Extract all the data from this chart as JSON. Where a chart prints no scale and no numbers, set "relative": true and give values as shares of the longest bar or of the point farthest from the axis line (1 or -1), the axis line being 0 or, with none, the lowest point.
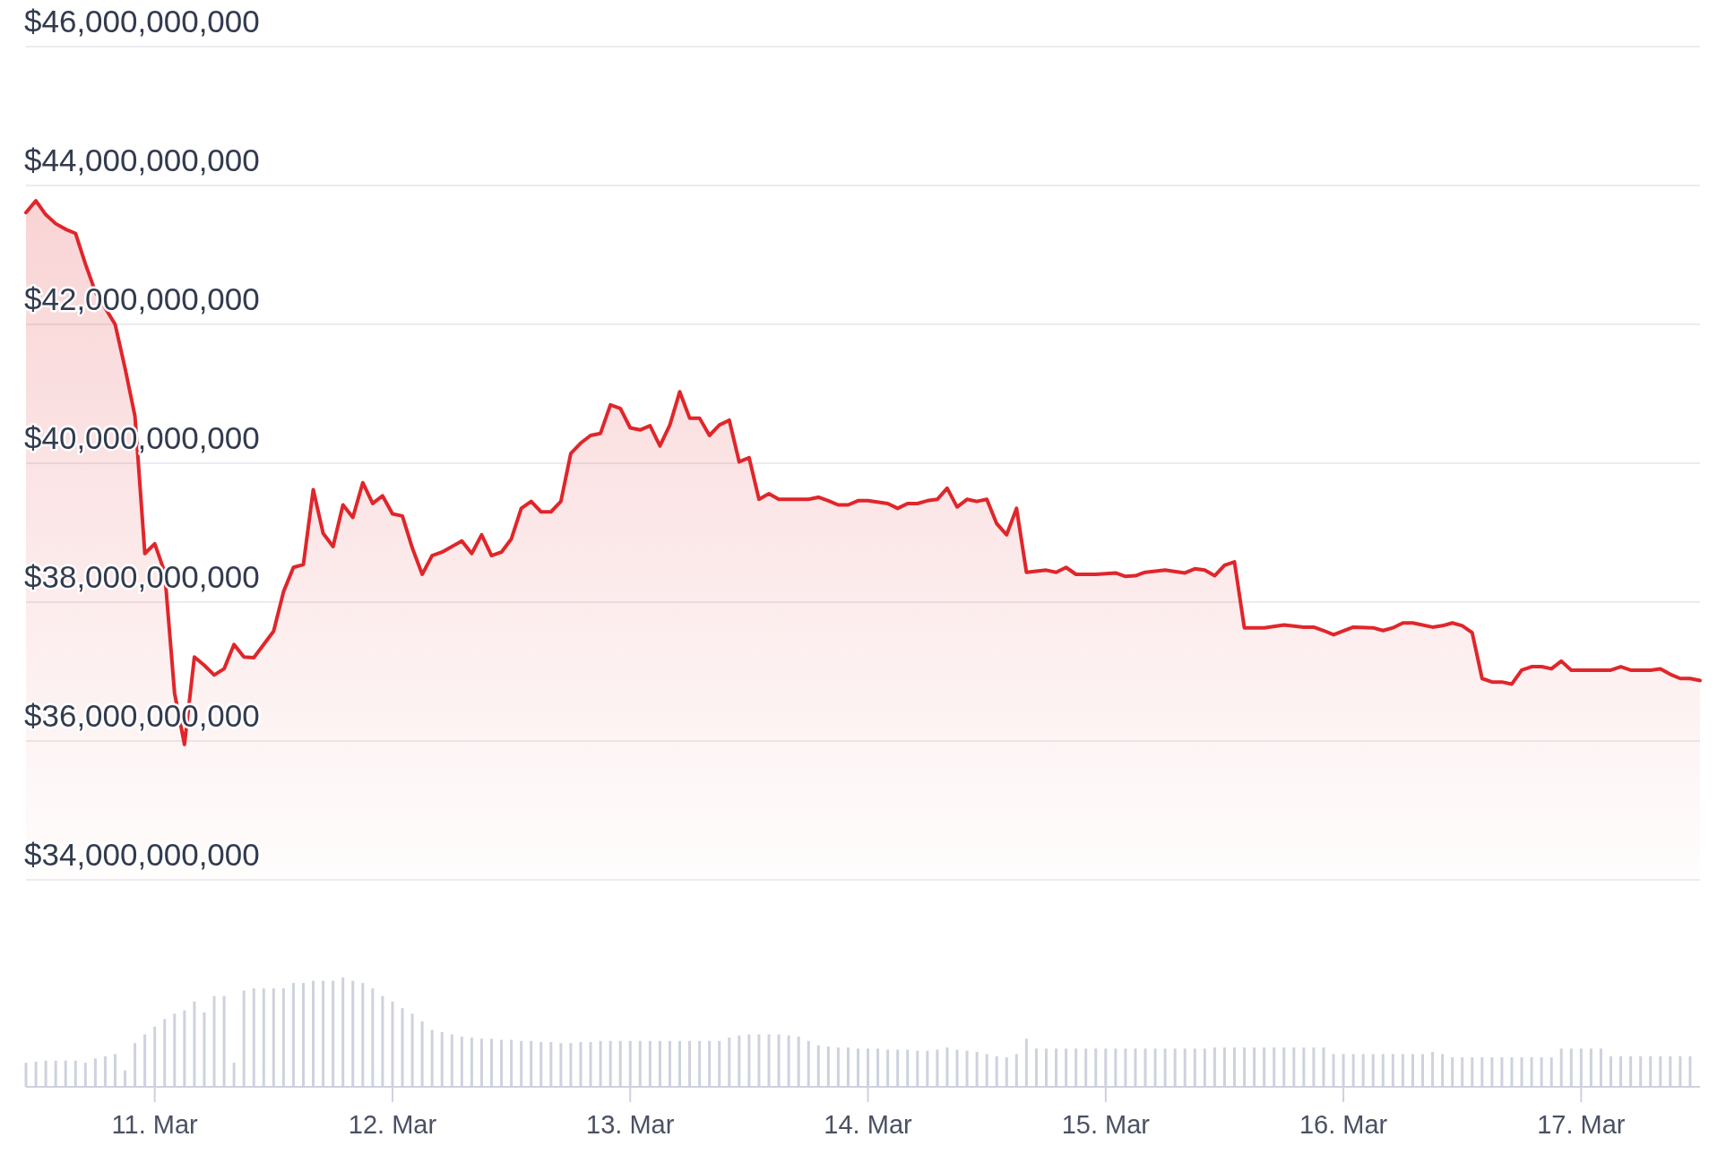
{
  "chart_data": [
    {
      "type": "area",
      "color": "#e0262b",
      "grid": "y",
      "tick_labels": "y",
      "xlim": [
        "--03-10T11:00",
        "--03-17T12:00"
      ],
      "ylim": [
        34000000000,
        46000000000
      ],
      "yticks": [
        {
          "value": 34000000000,
          "label": "$34,000,000,000"
        },
        {
          "value": 36000000000,
          "label": "$36,000,000,000"
        },
        {
          "value": 38000000000,
          "label": "$38,000,000,000"
        },
        {
          "value": 40000000000,
          "label": "$40,000,000,000"
        },
        {
          "value": 42000000000,
          "label": "$42,000,000,000"
        },
        {
          "value": 44000000000,
          "label": "$44,000,000,000"
        },
        {
          "value": 46000000000,
          "label": "$46,000,000,000"
        }
      ],
      "x": [
        "--03-10T11:00",
        "--03-10T12:00",
        "--03-10T13:00",
        "--03-10T14:00",
        "--03-10T15:00",
        "--03-10T16:00",
        "--03-10T17:00",
        "--03-10T18:00",
        "--03-10T20:00",
        "--03-10T21:00",
        "--03-10T22:00",
        "--03-10T23:00",
        "--03-11T00:00",
        "--03-11T01:00",
        "--03-11T02:00",
        "--03-11T03:00",
        "--03-11T04:00",
        "--03-11T05:00",
        "--03-11T06:00",
        "--03-11T07:00",
        "--03-11T08:00",
        "--03-11T09:00",
        "--03-11T10:00",
        "--03-11T12:00",
        "--03-11T13:00",
        "--03-11T14:00",
        "--03-11T15:00",
        "--03-11T16:00",
        "--03-11T17:00",
        "--03-11T18:00",
        "--03-11T19:00",
        "--03-11T20:00",
        "--03-11T21:00",
        "--03-11T22:00",
        "--03-11T23:00",
        "--03-12T00:00",
        "--03-12T01:00",
        "--03-12T02:00",
        "--03-12T03:00",
        "--03-12T04:00",
        "--03-12T05:00",
        "--03-12T07:00",
        "--03-12T08:00",
        "--03-12T09:00",
        "--03-12T10:00",
        "--03-12T11:00",
        "--03-12T12:00",
        "--03-12T13:00",
        "--03-12T14:00",
        "--03-12T15:00",
        "--03-12T16:00",
        "--03-12T17:00",
        "--03-12T18:00",
        "--03-12T19:00",
        "--03-12T20:00",
        "--03-12T21:00",
        "--03-12T22:00",
        "--03-12T23:00",
        "--03-13T00:00",
        "--03-13T01:00",
        "--03-13T02:00",
        "--03-13T03:00",
        "--03-13T04:00",
        "--03-13T05:00",
        "--03-13T06:00",
        "--03-13T07:00",
        "--03-13T08:00",
        "--03-13T09:00",
        "--03-13T10:00",
        "--03-13T11:00",
        "--03-13T12:00",
        "--03-13T13:00",
        "--03-13T14:00",
        "--03-13T15:00",
        "--03-13T18:00",
        "--03-13T19:00",
        "--03-13T20:00",
        "--03-13T21:00",
        "--03-13T22:00",
        "--03-13T23:00",
        "--03-14T00:00",
        "--03-14T02:00",
        "--03-14T03:00",
        "--03-14T04:00",
        "--03-14T05:00",
        "--03-14T06:00",
        "--03-14T07:00",
        "--03-14T08:00",
        "--03-14T09:00",
        "--03-14T10:00",
        "--03-14T11:00",
        "--03-14T12:00",
        "--03-14T13:00",
        "--03-14T14:00",
        "--03-14T15:00",
        "--03-14T16:00",
        "--03-14T18:00",
        "--03-14T19:00",
        "--03-14T20:00",
        "--03-14T21:00",
        "--03-14T23:00",
        "--03-15T01:00",
        "--03-15T02:00",
        "--03-15T03:00",
        "--03-15T04:00",
        "--03-15T06:00",
        "--03-15T08:00",
        "--03-15T09:00",
        "--03-15T10:00",
        "--03-15T11:00",
        "--03-15T12:00",
        "--03-15T13:00",
        "--03-15T14:00",
        "--03-15T16:00",
        "--03-15T18:00",
        "--03-15T20:00",
        "--03-15T21:00",
        "--03-15T22:00",
        "--03-15T23:00",
        "--03-16T01:00",
        "--03-16T03:00",
        "--03-16T04:00",
        "--03-16T05:00",
        "--03-16T06:00",
        "--03-16T07:00",
        "--03-16T09:00",
        "--03-16T10:00",
        "--03-16T11:00",
        "--03-16T12:00",
        "--03-16T13:00",
        "--03-16T14:00",
        "--03-16T15:00",
        "--03-16T16:00",
        "--03-16T17:00",
        "--03-16T18:00",
        "--03-16T19:00",
        "--03-16T20:00",
        "--03-16T21:00",
        "--03-16T22:00",
        "--03-16T23:00",
        "--03-17T00:00",
        "--03-17T03:00",
        "--03-17T04:00",
        "--03-17T05:00",
        "--03-17T07:00",
        "--03-17T08:00",
        "--03-17T09:00",
        "--03-17T10:00",
        "--03-17T11:00",
        "--03-17T12:00"
      ],
      "values": [
        43610000000,
        43780000000,
        43580000000,
        43450000000,
        43370000000,
        43310000000,
        42870000000,
        42470000000,
        42000000000,
        41370000000,
        40680000000,
        38700000000,
        38840000000,
        38430000000,
        36690000000,
        35950000000,
        37210000000,
        37090000000,
        36950000000,
        37040000000,
        37390000000,
        37210000000,
        37200000000,
        37580000000,
        38150000000,
        38500000000,
        38540000000,
        39620000000,
        38990000000,
        38800000000,
        39400000000,
        39220000000,
        39720000000,
        39420000000,
        39530000000,
        39270000000,
        39240000000,
        38780000000,
        38400000000,
        38670000000,
        38720000000,
        38880000000,
        38700000000,
        38970000000,
        38670000000,
        38720000000,
        38910000000,
        39350000000,
        39450000000,
        39300000000,
        39300000000,
        39450000000,
        40140000000,
        40290000000,
        40400000000,
        40430000000,
        40840000000,
        40790000000,
        40510000000,
        40480000000,
        40540000000,
        40250000000,
        40550000000,
        41030000000,
        40650000000,
        40650000000,
        40400000000,
        40550000000,
        40620000000,
        40020000000,
        40080000000,
        39480000000,
        39560000000,
        39480000000,
        39480000000,
        39510000000,
        39460000000,
        39400000000,
        39400000000,
        39460000000,
        39460000000,
        39420000000,
        39350000000,
        39420000000,
        39420000000,
        39460000000,
        39480000000,
        39640000000,
        39370000000,
        39480000000,
        39450000000,
        39480000000,
        39130000000,
        38970000000,
        39350000000,
        38430000000,
        38460000000,
        38430000000,
        38500000000,
        38400000000,
        38400000000,
        38420000000,
        38370000000,
        38380000000,
        38430000000,
        38460000000,
        38420000000,
        38480000000,
        38460000000,
        38380000000,
        38530000000,
        38580000000,
        37630000000,
        37630000000,
        37670000000,
        37640000000,
        37640000000,
        37590000000,
        37530000000,
        37640000000,
        37630000000,
        37590000000,
        37630000000,
        37700000000,
        37700000000,
        37640000000,
        37660000000,
        37700000000,
        37660000000,
        37560000000,
        36900000000,
        36850000000,
        36850000000,
        36820000000,
        37020000000,
        37070000000,
        37070000000,
        37040000000,
        37150000000,
        37020000000,
        37020000000,
        37020000000,
        37070000000,
        37020000000,
        37020000000,
        37040000000,
        36960000000,
        36900000000,
        36900000000,
        36870000000
      ]
    },
    {
      "type": "bar",
      "relative": true,
      "color": "#cdd2dd",
      "tick_labels": "x",
      "xlim": [
        "--03-10T11:00",
        "--03-17T12:00"
      ],
      "xticks": [
        {
          "value": "--03-11T00:00",
          "label": "11. Mar"
        },
        {
          "value": "--03-12T00:00",
          "label": "12. Mar"
        },
        {
          "value": "--03-13T00:00",
          "label": "13. Mar"
        },
        {
          "value": "--03-14T00:00",
          "label": "14. Mar"
        },
        {
          "value": "--03-15T00:00",
          "label": "15. Mar"
        },
        {
          "value": "--03-16T00:00",
          "label": "16. Mar"
        },
        {
          "value": "--03-17T00:00",
          "label": "17. Mar"
        }
      ],
      "x": [
        "--03-10T11:00",
        "--03-10T12:00",
        "--03-10T13:00",
        "--03-10T14:00",
        "--03-10T15:00",
        "--03-10T16:00",
        "--03-10T17:00",
        "--03-10T18:00",
        "--03-10T19:00",
        "--03-10T20:00",
        "--03-10T21:00",
        "--03-10T22:00",
        "--03-10T23:00",
        "--03-11T00:00",
        "--03-11T01:00",
        "--03-11T02:00",
        "--03-11T03:00",
        "--03-11T04:00",
        "--03-11T05:00",
        "--03-11T06:00",
        "--03-11T07:00",
        "--03-11T08:00",
        "--03-11T09:00",
        "--03-11T10:00",
        "--03-11T11:00",
        "--03-11T12:00",
        "--03-11T13:00",
        "--03-11T14:00",
        "--03-11T15:00",
        "--03-11T16:00",
        "--03-11T17:00",
        "--03-11T18:00",
        "--03-11T19:00",
        "--03-11T20:00",
        "--03-11T21:00",
        "--03-11T22:00",
        "--03-11T23:00",
        "--03-12T00:00",
        "--03-12T01:00",
        "--03-12T02:00",
        "--03-12T03:00",
        "--03-12T04:00",
        "--03-12T05:00",
        "--03-12T06:00",
        "--03-12T07:00",
        "--03-12T08:00",
        "--03-12T09:00",
        "--03-12T10:00",
        "--03-12T11:00",
        "--03-12T12:00",
        "--03-12T13:00",
        "--03-12T14:00",
        "--03-12T15:00",
        "--03-12T16:00",
        "--03-12T17:00",
        "--03-12T18:00",
        "--03-12T19:00",
        "--03-12T20:00",
        "--03-12T21:00",
        "--03-12T22:00",
        "--03-12T23:00",
        "--03-13T00:00",
        "--03-13T01:00",
        "--03-13T02:00",
        "--03-13T03:00",
        "--03-13T04:00",
        "--03-13T05:00",
        "--03-13T06:00",
        "--03-13T07:00",
        "--03-13T08:00",
        "--03-13T09:00",
        "--03-13T10:00",
        "--03-13T11:00",
        "--03-13T12:00",
        "--03-13T13:00",
        "--03-13T14:00",
        "--03-13T15:00",
        "--03-13T16:00",
        "--03-13T17:00",
        "--03-13T18:00",
        "--03-13T19:00",
        "--03-13T20:00",
        "--03-13T21:00",
        "--03-13T22:00",
        "--03-13T23:00",
        "--03-14T00:00",
        "--03-14T01:00",
        "--03-14T02:00",
        "--03-14T03:00",
        "--03-14T04:00",
        "--03-14T05:00",
        "--03-14T06:00",
        "--03-14T07:00",
        "--03-14T08:00",
        "--03-14T09:00",
        "--03-14T10:00",
        "--03-14T11:00",
        "--03-14T12:00",
        "--03-14T13:00",
        "--03-14T14:00",
        "--03-14T15:00",
        "--03-14T16:00",
        "--03-14T17:00",
        "--03-14T18:00",
        "--03-14T19:00",
        "--03-14T20:00",
        "--03-14T21:00",
        "--03-14T22:00",
        "--03-14T23:00",
        "--03-15T00:00",
        "--03-15T01:00",
        "--03-15T02:00",
        "--03-15T03:00",
        "--03-15T04:00",
        "--03-15T05:00",
        "--03-15T06:00",
        "--03-15T07:00",
        "--03-15T08:00",
        "--03-15T09:00",
        "--03-15T10:00",
        "--03-15T11:00",
        "--03-15T12:00",
        "--03-15T13:00",
        "--03-15T14:00",
        "--03-15T15:00",
        "--03-15T16:00",
        "--03-15T17:00",
        "--03-15T18:00",
        "--03-15T19:00",
        "--03-15T20:00",
        "--03-15T21:00",
        "--03-15T22:00",
        "--03-15T23:00",
        "--03-16T00:00",
        "--03-16T01:00",
        "--03-16T02:00",
        "--03-16T03:00",
        "--03-16T04:00",
        "--03-16T05:00",
        "--03-16T06:00",
        "--03-16T07:00",
        "--03-16T08:00",
        "--03-16T09:00",
        "--03-16T10:00",
        "--03-16T11:00",
        "--03-16T12:00",
        "--03-16T13:00",
        "--03-16T14:00",
        "--03-16T15:00",
        "--03-16T16:00",
        "--03-16T17:00",
        "--03-16T18:00",
        "--03-16T19:00",
        "--03-16T20:00",
        "--03-16T21:00",
        "--03-16T22:00",
        "--03-16T23:00",
        "--03-17T00:00",
        "--03-17T01:00",
        "--03-17T02:00",
        "--03-17T03:00",
        "--03-17T04:00",
        "--03-17T05:00",
        "--03-17T06:00",
        "--03-17T07:00",
        "--03-17T08:00",
        "--03-17T09:00",
        "--03-17T10:00",
        "--03-17T11:00"
      ],
      "values": [
        0.22,
        0.23,
        0.24,
        0.24,
        0.24,
        0.24,
        0.22,
        0.26,
        0.28,
        0.3,
        0.15,
        0.4,
        0.48,
        0.55,
        0.62,
        0.67,
        0.7,
        0.78,
        0.68,
        0.83,
        0.83,
        0.22,
        0.88,
        0.9,
        0.9,
        0.9,
        0.9,
        0.95,
        0.95,
        0.97,
        0.97,
        0.97,
        1.0,
        0.97,
        0.95,
        0.9,
        0.83,
        0.78,
        0.72,
        0.67,
        0.6,
        0.52,
        0.5,
        0.48,
        0.46,
        0.45,
        0.44,
        0.44,
        0.43,
        0.43,
        0.42,
        0.42,
        0.41,
        0.41,
        0.4,
        0.4,
        0.41,
        0.41,
        0.42,
        0.42,
        0.42,
        0.42,
        0.42,
        0.42,
        0.42,
        0.42,
        0.42,
        0.42,
        0.42,
        0.42,
        0.42,
        0.45,
        0.47,
        0.48,
        0.48,
        0.48,
        0.48,
        0.47,
        0.46,
        0.42,
        0.38,
        0.37,
        0.36,
        0.36,
        0.35,
        0.35,
        0.35,
        0.34,
        0.34,
        0.34,
        0.33,
        0.33,
        0.34,
        0.36,
        0.34,
        0.33,
        0.32,
        0.3,
        0.28,
        0.27,
        0.3,
        0.44,
        0.35,
        0.35,
        0.35,
        0.35,
        0.35,
        0.35,
        0.35,
        0.35,
        0.35,
        0.35,
        0.35,
        0.35,
        0.35,
        0.35,
        0.35,
        0.35,
        0.35,
        0.35,
        0.36,
        0.36,
        0.36,
        0.36,
        0.36,
        0.36,
        0.36,
        0.36,
        0.36,
        0.36,
        0.36,
        0.36,
        0.3,
        0.3,
        0.3,
        0.3,
        0.3,
        0.3,
        0.3,
        0.3,
        0.3,
        0.3,
        0.32,
        0.3,
        0.27,
        0.27,
        0.27,
        0.27,
        0.27,
        0.27,
        0.27,
        0.27,
        0.27,
        0.27,
        0.27,
        0.35,
        0.35,
        0.35,
        0.35,
        0.35,
        0.28,
        0.28,
        0.28,
        0.28,
        0.28,
        0.28,
        0.28,
        0.28,
        0.28
      ]
    }
  ]
}
